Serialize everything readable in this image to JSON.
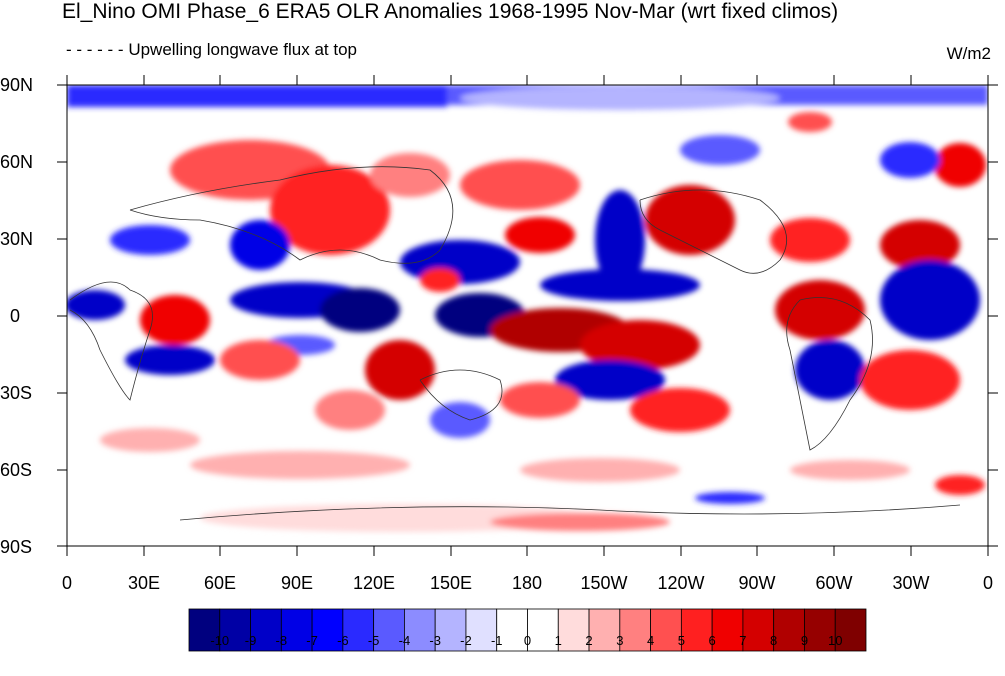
{
  "title": "El_Nino OMI Phase_6 ERA5 OLR Anomalies 1968-1995 Nov-Mar (wrt fixed climos)",
  "subtitle": "Upwelling longwave flux at top",
  "units": "W/m2",
  "lat_ticks": [
    "90N",
    "60N",
    "30N",
    "0",
    "30S",
    "60S",
    "90S"
  ],
  "lon_ticks": [
    "0",
    "30E",
    "60E",
    "90E",
    "120E",
    "150E",
    "180",
    "150W",
    "120W",
    "90W",
    "60W",
    "30W",
    "0"
  ],
  "colorbar": {
    "labels": [
      "-10",
      "-9",
      "-8",
      "-7",
      "-6",
      "-5",
      "-4",
      "-3",
      "-2",
      "-1",
      "0",
      "1",
      "2",
      "3",
      "4",
      "5",
      "6",
      "7",
      "8",
      "9",
      "10"
    ],
    "colors": [
      "#00007f",
      "#0000a5",
      "#0000c8",
      "#0000e6",
      "#0000ff",
      "#2a2aff",
      "#5a5aff",
      "#8c8cff",
      "#b4b4ff",
      "#e0e0ff",
      "#ffffff",
      "#ffffff",
      "#ffdcdc",
      "#ffb0b0",
      "#ff8080",
      "#ff5050",
      "#ff2020",
      "#f00000",
      "#d40000",
      "#b00000",
      "#960000",
      "#7f0000"
    ]
  },
  "colors": {
    "positive": "#d40000",
    "negative": "#0000c8",
    "neutral": "#ffffff"
  }
}
